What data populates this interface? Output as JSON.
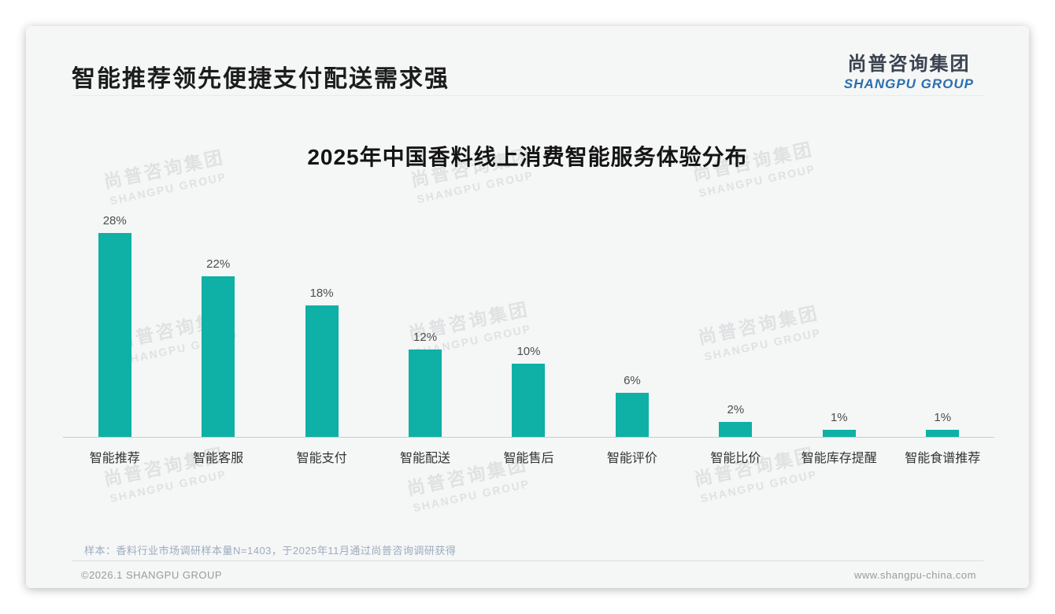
{
  "header": {
    "title": "智能推荐领先便捷支付配送需求强"
  },
  "logo": {
    "zh": "尚普咨询集团",
    "en": "SHANGPU GROUP"
  },
  "watermark": {
    "zh": "尚普咨询集团",
    "en": "SHANGPU GROUP"
  },
  "chart_data": {
    "type": "bar",
    "title": "2025年中国香料线上消费智能服务体验分布",
    "categories": [
      "智能推荐",
      "智能客服",
      "智能支付",
      "智能配送",
      "智能售后",
      "智能评价",
      "智能比价",
      "智能库存提醒",
      "智能食谱推荐"
    ],
    "values": [
      28,
      22,
      18,
      12,
      10,
      6,
      2,
      1,
      1
    ],
    "unit": "%",
    "value_labels": [
      "28%",
      "22%",
      "18%",
      "12%",
      "10%",
      "6%",
      "2%",
      "1%",
      "1%"
    ],
    "bar_color": "#0fb0a6",
    "xlabel": "",
    "ylabel": "",
    "ylim": [
      0,
      30
    ],
    "grid": false,
    "legend": null
  },
  "note": "样本：香料行业市场调研样本量N=1403，于2025年11月通过尚普咨询调研获得",
  "footer": {
    "left": "©2026.1 SHANGPU GROUP",
    "right": "www.shangpu-china.com"
  }
}
